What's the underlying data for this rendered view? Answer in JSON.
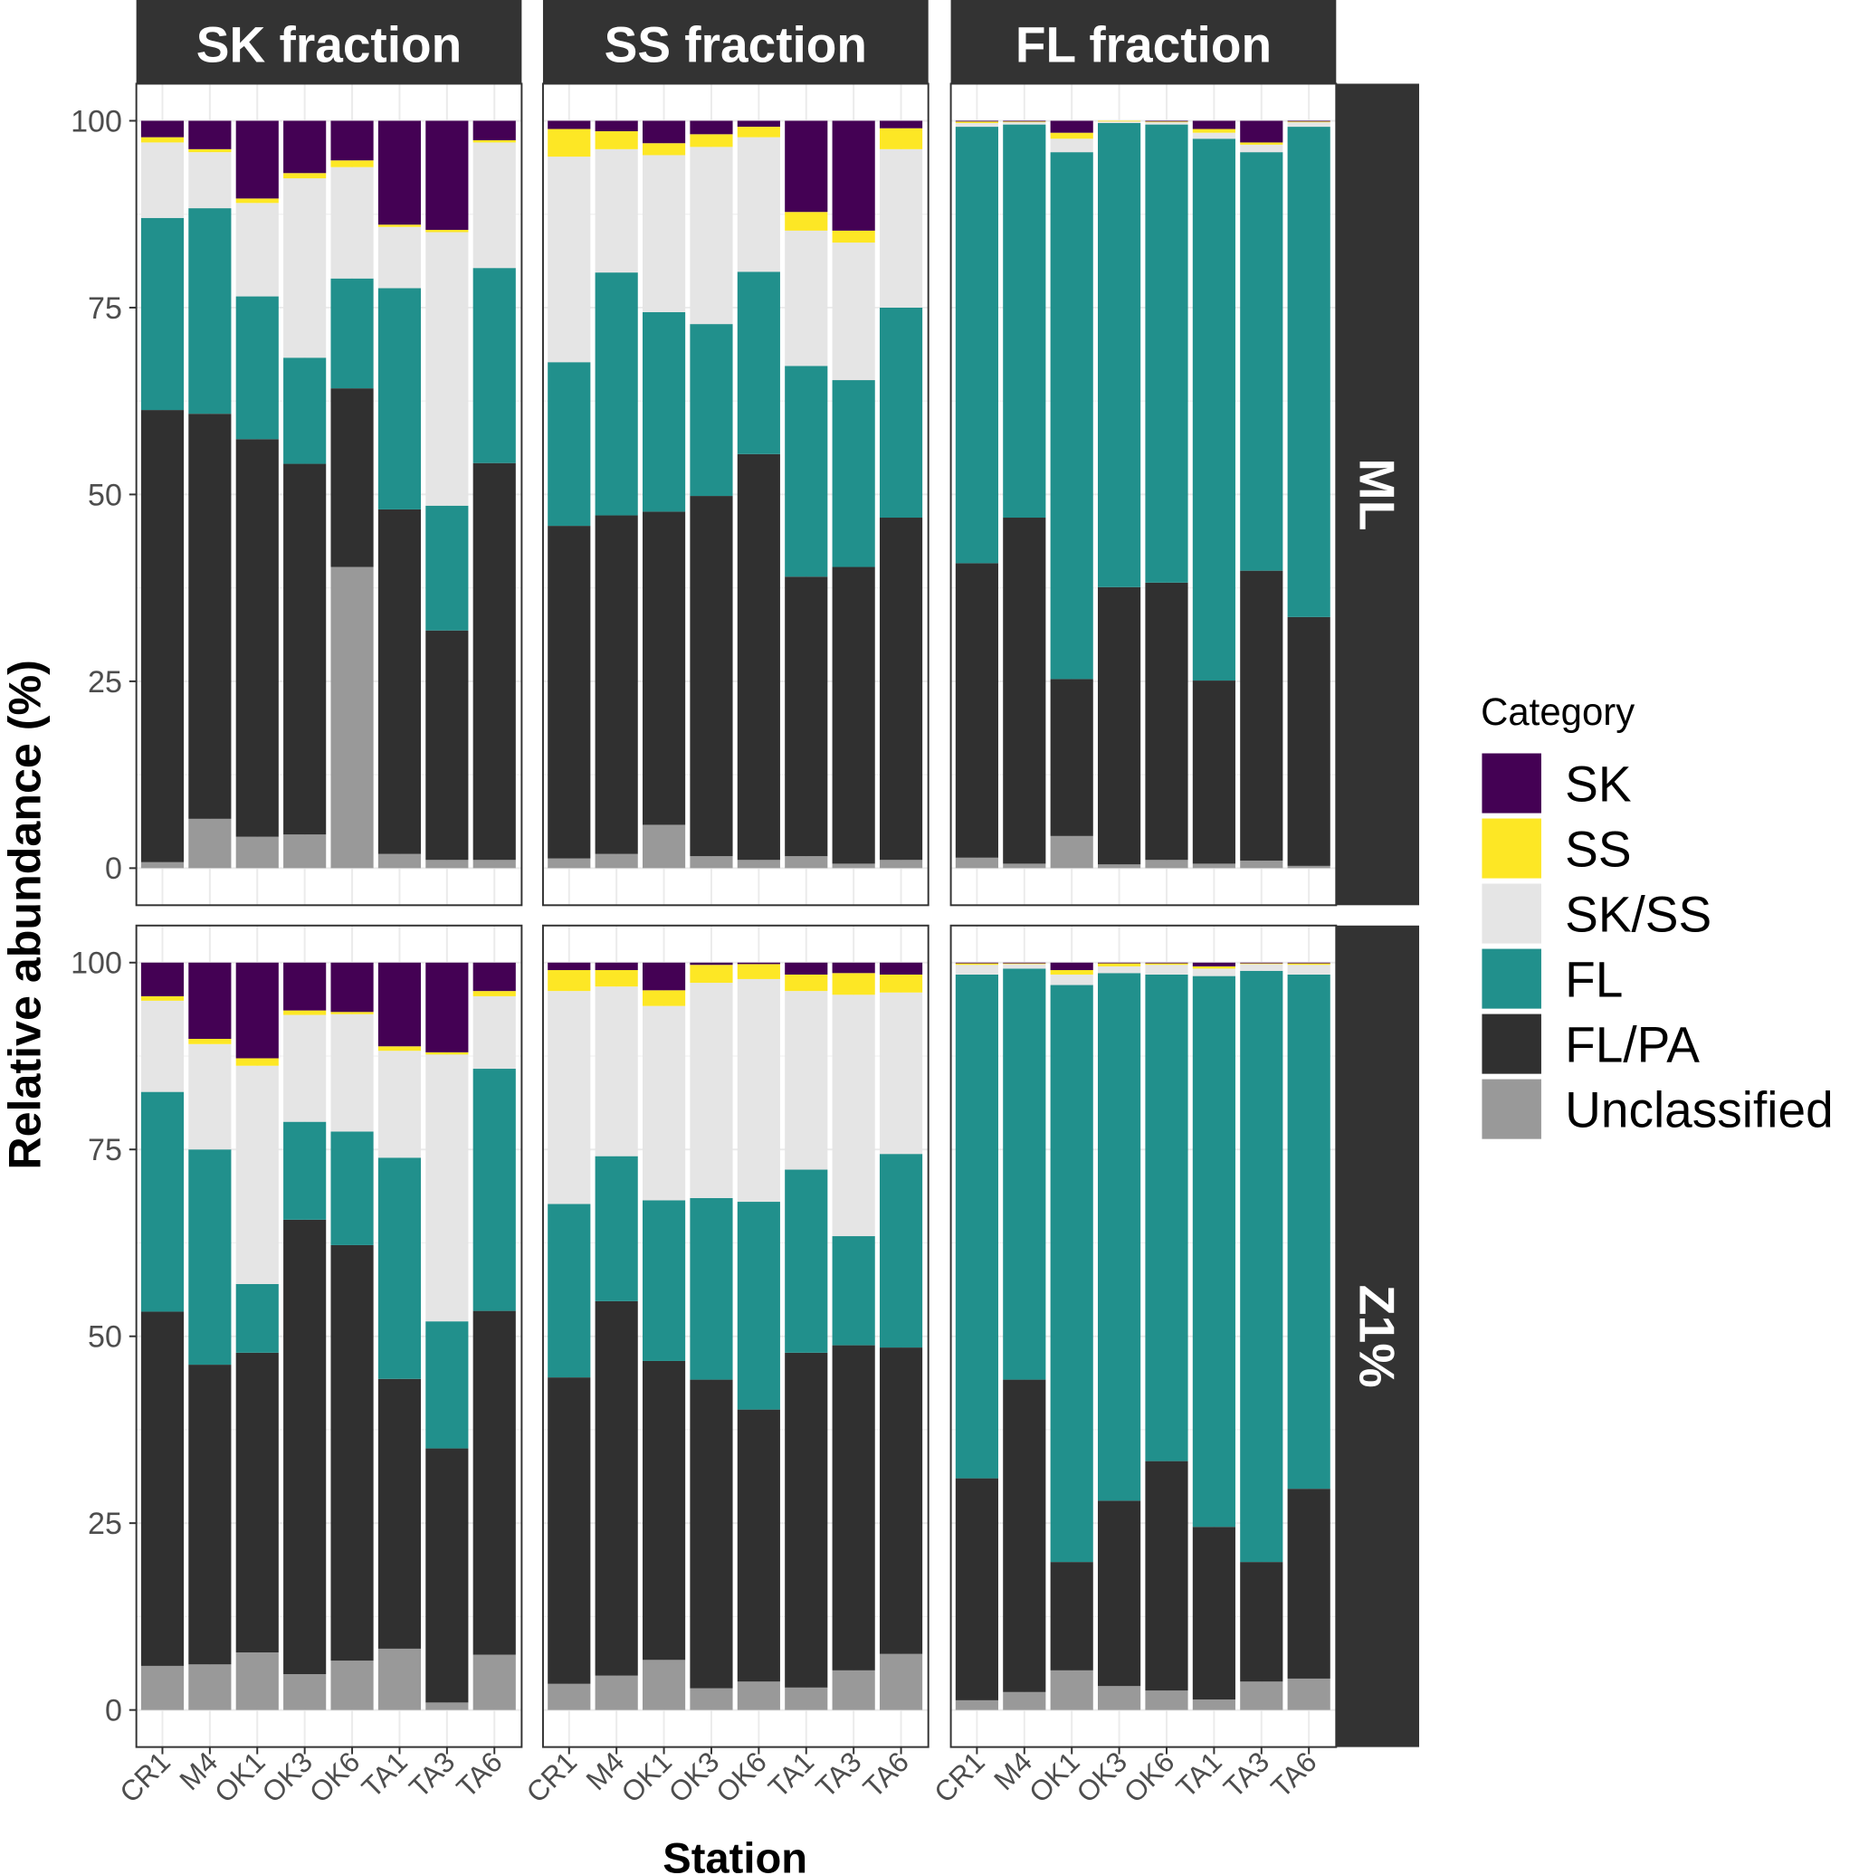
{
  "chart_data": {
    "type": "bar",
    "stacked": true,
    "xlabel": "Station",
    "ylabel": "Relative abundance (%)",
    "ylim": [
      0,
      100
    ],
    "yticks": [
      0,
      25,
      50,
      75,
      100
    ],
    "grid": true,
    "legend": {
      "title": "Category",
      "placement": "right"
    },
    "categories": [
      "CR1",
      "M4",
      "OK1",
      "OK3",
      "OK6",
      "TA1",
      "TA3",
      "TA6"
    ],
    "series_names": [
      "Unclassified",
      "FL/PA",
      "FL",
      "SK/SS",
      "SS",
      "SK"
    ],
    "legend_order": [
      "SK",
      "SS",
      "SK/SS",
      "FL",
      "FL/PA",
      "Unclassified"
    ],
    "colors": {
      "SK": "#440154",
      "SS": "#fde725",
      "SK/SS": "#e5e5e5",
      "FL": "#21908c",
      "FL/PA": "#303030",
      "Unclassified": "#999999"
    },
    "column_facets": [
      "SK fraction",
      "SS fraction",
      "FL fraction"
    ],
    "row_facets": [
      "ML",
      "Z1%"
    ],
    "panels": [
      {
        "row": "ML",
        "col": "SK fraction",
        "values": [
          [
            0.8,
            60.5,
            25.7,
            10.1,
            0.7,
            2.2
          ],
          [
            6.6,
            54.2,
            27.5,
            7.5,
            0.4,
            3.8
          ],
          [
            4.2,
            53.2,
            19.1,
            12.5,
            0.6,
            10.4
          ],
          [
            4.5,
            49.6,
            14.2,
            24.0,
            0.7,
            7.0
          ],
          [
            40.3,
            23.9,
            14.7,
            14.9,
            0.9,
            5.3
          ],
          [
            1.9,
            46.1,
            29.6,
            8.2,
            0.3,
            13.9
          ],
          [
            1.1,
            30.7,
            16.7,
            36.6,
            0.3,
            14.6
          ],
          [
            1.1,
            53.1,
            26.1,
            16.8,
            0.3,
            2.6
          ]
        ]
      },
      {
        "row": "ML",
        "col": "SS fraction",
        "values": [
          [
            1.3,
            44.5,
            21.9,
            27.5,
            3.7,
            1.1
          ],
          [
            1.9,
            45.3,
            32.5,
            16.5,
            2.4,
            1.4
          ],
          [
            5.8,
            41.9,
            26.7,
            21.0,
            1.6,
            3.0
          ],
          [
            1.6,
            48.2,
            23.0,
            23.7,
            1.7,
            1.8
          ],
          [
            1.1,
            54.3,
            24.4,
            18.0,
            1.4,
            0.8
          ],
          [
            1.6,
            37.4,
            28.2,
            18.1,
            2.5,
            12.2
          ],
          [
            0.6,
            39.7,
            25.0,
            18.4,
            1.6,
            14.7
          ],
          [
            1.1,
            45.8,
            28.1,
            21.2,
            2.8,
            1.0
          ]
        ]
      },
      {
        "row": "ML",
        "col": "FL fraction",
        "values": [
          [
            1.4,
            39.4,
            58.4,
            0.5,
            0.2,
            0.1
          ],
          [
            0.6,
            46.3,
            52.6,
            0.3,
            0.1,
            0.1
          ],
          [
            4.3,
            21.0,
            70.5,
            1.8,
            0.8,
            1.6
          ],
          [
            0.5,
            37.1,
            62.1,
            0.2,
            0.1,
            0.0
          ],
          [
            1.1,
            37.1,
            61.3,
            0.3,
            0.1,
            0.1
          ],
          [
            0.6,
            24.5,
            72.5,
            0.8,
            0.5,
            1.1
          ],
          [
            1.0,
            38.8,
            56.0,
            1.0,
            0.3,
            2.9
          ],
          [
            0.3,
            33.3,
            65.6,
            0.6,
            0.1,
            0.1
          ]
        ]
      },
      {
        "row": "Z1%",
        "col": "SK fraction",
        "values": [
          [
            5.9,
            47.4,
            29.4,
            12.2,
            0.6,
            4.5
          ],
          [
            6.1,
            40.1,
            28.8,
            14.1,
            0.7,
            10.2
          ],
          [
            7.7,
            40.1,
            9.2,
            29.2,
            1.0,
            12.8
          ],
          [
            4.8,
            60.8,
            13.1,
            14.3,
            0.6,
            6.4
          ],
          [
            6.6,
            55.6,
            15.2,
            15.7,
            0.3,
            6.6
          ],
          [
            8.2,
            36.1,
            29.6,
            14.3,
            0.6,
            11.2
          ],
          [
            1.0,
            34.0,
            17.0,
            35.7,
            0.3,
            12.0
          ],
          [
            7.4,
            46.0,
            32.4,
            9.7,
            0.7,
            3.8
          ]
        ]
      },
      {
        "row": "Z1%",
        "col": "SS fraction",
        "values": [
          [
            3.5,
            41.0,
            23.2,
            28.5,
            2.8,
            1.0
          ],
          [
            4.6,
            50.1,
            19.4,
            22.7,
            2.2,
            1.0
          ],
          [
            6.7,
            40.0,
            21.5,
            26.0,
            2.1,
            3.7
          ],
          [
            2.9,
            41.3,
            24.3,
            28.8,
            2.4,
            0.3
          ],
          [
            3.8,
            36.4,
            27.8,
            29.8,
            2.0,
            0.2
          ],
          [
            3.0,
            44.8,
            24.5,
            23.9,
            2.2,
            1.6
          ],
          [
            5.3,
            43.5,
            14.6,
            32.3,
            2.9,
            1.4
          ],
          [
            7.5,
            41.0,
            25.9,
            21.6,
            2.4,
            1.6
          ]
        ]
      },
      {
        "row": "Z1%",
        "col": "FL fraction",
        "values": [
          [
            1.3,
            29.7,
            67.4,
            1.3,
            0.2,
            0.1
          ],
          [
            2.4,
            41.8,
            55.0,
            0.6,
            0.1,
            0.1
          ],
          [
            5.3,
            14.5,
            77.2,
            1.4,
            0.6,
            1.0
          ],
          [
            3.2,
            24.8,
            70.6,
            0.9,
            0.4,
            0.1
          ],
          [
            2.6,
            30.7,
            65.1,
            1.3,
            0.2,
            0.1
          ],
          [
            1.4,
            23.1,
            73.7,
            1.0,
            0.3,
            0.5
          ],
          [
            3.8,
            16.0,
            79.1,
            0.9,
            0.1,
            0.1
          ],
          [
            4.2,
            25.4,
            68.8,
            1.3,
            0.2,
            0.1
          ]
        ]
      }
    ]
  }
}
